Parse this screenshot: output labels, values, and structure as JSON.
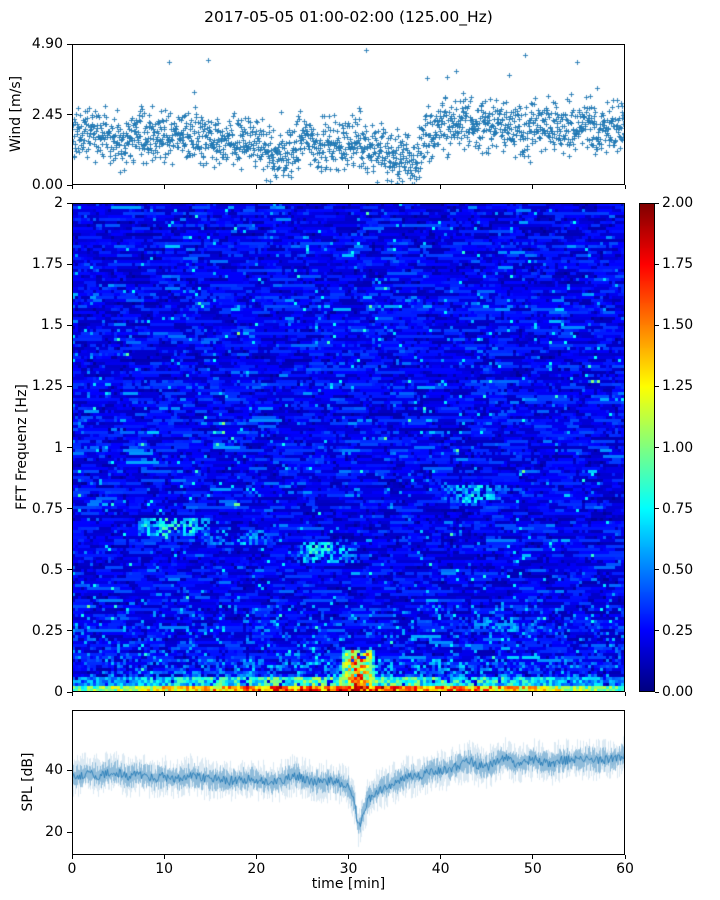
{
  "figure": {
    "title": "2017-05-05 01:00-02:00 (125.00_Hz)",
    "background": "#ffffff",
    "series_color": "#1f77b4"
  },
  "x_axis": {
    "label": "time [min]",
    "range": [
      0,
      60
    ],
    "tick_values": [
      0,
      10,
      20,
      30,
      40,
      50,
      60
    ],
    "tick_labels": [
      "0",
      "10",
      "20",
      "30",
      "40",
      "50",
      "60"
    ]
  },
  "chart_data": [
    {
      "type": "scatter",
      "name": "wind-speed",
      "ylabel": "Wind [m/s]",
      "marker": "+",
      "color": "#1f77b4",
      "xlim": [
        0,
        60
      ],
      "ylim": [
        0,
        4.9
      ],
      "ytick_values": [
        0,
        2.45,
        4.9
      ],
      "ytick_labels": [
        "0.00",
        "2.45",
        "4.90"
      ],
      "n_points": 1700,
      "spread": 0.55,
      "spike_rate": 0.022,
      "spike_max": 4.8,
      "trend": [
        [
          0,
          1.7
        ],
        [
          2,
          1.9
        ],
        [
          4,
          1.6
        ],
        [
          6,
          1.5
        ],
        [
          8,
          1.8
        ],
        [
          10,
          1.7
        ],
        [
          12,
          1.8
        ],
        [
          14,
          1.6
        ],
        [
          16,
          1.5
        ],
        [
          18,
          1.6
        ],
        [
          20,
          1.4
        ],
        [
          22,
          1.0
        ],
        [
          23,
          0.9
        ],
        [
          24,
          1.2
        ],
        [
          25,
          1.6
        ],
        [
          27,
          1.5
        ],
        [
          29,
          1.3
        ],
        [
          31,
          1.5
        ],
        [
          33,
          1.2
        ],
        [
          35,
          1.0
        ],
        [
          36,
          0.7
        ],
        [
          37,
          0.6
        ],
        [
          38,
          1.3
        ],
        [
          39,
          1.9
        ],
        [
          41,
          2.1
        ],
        [
          43,
          2.2
        ],
        [
          45,
          2.0
        ],
        [
          47,
          2.2
        ],
        [
          49,
          1.9
        ],
        [
          51,
          2.1
        ],
        [
          53,
          2.0
        ],
        [
          55,
          2.2
        ],
        [
          57,
          1.9
        ],
        [
          59,
          2.1
        ],
        [
          60,
          2.0
        ]
      ]
    },
    {
      "type": "heatmap",
      "name": "fft-spectrogram",
      "ylabel": "FFT Frequenz [Hz]",
      "colormap": "jet",
      "clim": [
        0,
        2
      ],
      "xlim": [
        0,
        60
      ],
      "ylim": [
        0,
        2
      ],
      "ytick_values": [
        0,
        0.25,
        0.5,
        0.75,
        1,
        1.25,
        1.5,
        1.75,
        2
      ],
      "ytick_labels": [
        "0",
        "0.25",
        "0.5",
        "0.75",
        "1",
        "1.25",
        "1.5",
        "1.75",
        "2"
      ],
      "background_level": 0.22,
      "colorbar": {
        "range": [
          0,
          2
        ],
        "tick_values": [
          0,
          0.25,
          0.5,
          0.75,
          1,
          1.25,
          1.5,
          1.75,
          2
        ],
        "tick_labels": [
          "0.00",
          "0.25",
          "0.50",
          "0.75",
          "1.00",
          "1.25",
          "1.50",
          "1.75",
          "2.00"
        ]
      },
      "features": [
        {
          "name": "surface-band",
          "t": [
            0,
            60
          ],
          "f": [
            0,
            0.022
          ],
          "v": [
            1.2,
            2.0
          ],
          "p": 1.0
        },
        {
          "name": "sub-surface-band",
          "t": [
            0,
            60
          ],
          "f": [
            0.022,
            0.06
          ],
          "v": [
            0.55,
            1.15
          ],
          "p": 0.9
        },
        {
          "name": "low-band-speckle",
          "t": [
            0,
            60
          ],
          "f": [
            0.06,
            0.13
          ],
          "v": [
            0.35,
            0.75
          ],
          "p": 0.35
        },
        {
          "name": "event-31min",
          "t": [
            29.3,
            32.6
          ],
          "f": [
            0,
            0.17
          ],
          "v": [
            0.9,
            2.0
          ],
          "p": 0.85
        },
        {
          "name": "event-31min-halo",
          "t": [
            28.5,
            33.5
          ],
          "f": [
            0,
            0.1
          ],
          "v": [
            0.6,
            1.2
          ],
          "p": 0.5
        },
        {
          "name": "streak-0.67Hz",
          "t": [
            7,
            15
          ],
          "f": [
            0.635,
            0.715
          ],
          "v": [
            0.6,
            1.0
          ],
          "p": 0.6
        },
        {
          "name": "streak-0.63Hz",
          "t": [
            14,
            22
          ],
          "f": [
            0.6,
            0.665
          ],
          "v": [
            0.45,
            0.75
          ],
          "p": 0.5
        },
        {
          "name": "streak-0.57Hz",
          "t": [
            24,
            31
          ],
          "f": [
            0.525,
            0.615
          ],
          "v": [
            0.55,
            0.95
          ],
          "p": 0.55
        },
        {
          "name": "streak-0.80Hz",
          "t": [
            40,
            47
          ],
          "f": [
            0.77,
            0.85
          ],
          "v": [
            0.5,
            0.85
          ],
          "p": 0.5
        },
        {
          "name": "streak-0.27Hz",
          "t": [
            42,
            52
          ],
          "f": [
            0.24,
            0.31
          ],
          "v": [
            0.4,
            0.7
          ],
          "p": 0.4
        }
      ]
    },
    {
      "type": "line",
      "name": "sound-pressure-level",
      "ylabel": "SPL [dB]",
      "color": "#1f77b4",
      "xlim": [
        0,
        60
      ],
      "ylim": [
        12.6,
        59.4
      ],
      "ytick_values": [
        20,
        40
      ],
      "ytick_labels": [
        "20",
        "40"
      ],
      "noise": 3.2,
      "trend": [
        [
          0,
          38
        ],
        [
          1,
          38.5
        ],
        [
          2,
          39
        ],
        [
          3,
          38
        ],
        [
          4,
          39.5
        ],
        [
          5,
          39
        ],
        [
          6,
          38
        ],
        [
          7,
          38.5
        ],
        [
          8,
          38
        ],
        [
          9,
          37.5
        ],
        [
          10,
          38
        ],
        [
          11,
          37
        ],
        [
          12,
          37.5
        ],
        [
          13,
          38.5
        ],
        [
          14,
          37.5
        ],
        [
          15,
          37
        ],
        [
          16,
          37.5
        ],
        [
          17,
          36.5
        ],
        [
          18,
          37
        ],
        [
          19,
          37
        ],
        [
          20,
          37
        ],
        [
          21,
          36.5
        ],
        [
          22,
          36
        ],
        [
          23,
          37
        ],
        [
          24,
          38.5
        ],
        [
          25,
          37.5
        ],
        [
          26,
          36.5
        ],
        [
          27,
          36
        ],
        [
          28,
          36.5
        ],
        [
          29,
          36
        ],
        [
          30,
          34.5
        ],
        [
          30.6,
          29
        ],
        [
          31,
          21.5
        ],
        [
          31.4,
          24
        ],
        [
          32,
          30
        ],
        [
          33,
          33.5
        ],
        [
          34,
          34.5
        ],
        [
          35,
          36
        ],
        [
          36,
          37.5
        ],
        [
          37,
          38
        ],
        [
          38,
          38.5
        ],
        [
          39,
          39.5
        ],
        [
          40,
          40
        ],
        [
          41,
          40.5
        ],
        [
          42,
          41.5
        ],
        [
          43,
          43
        ],
        [
          44,
          41.5
        ],
        [
          45,
          41
        ],
        [
          46,
          42.5
        ],
        [
          47,
          44
        ],
        [
          48,
          42
        ],
        [
          49,
          42.5
        ],
        [
          50,
          43.5
        ],
        [
          51,
          42.5
        ],
        [
          52,
          42
        ],
        [
          53,
          43
        ],
        [
          54,
          43.5
        ],
        [
          55,
          43
        ],
        [
          56,
          44
        ],
        [
          57,
          43
        ],
        [
          58,
          43.5
        ],
        [
          59,
          44
        ],
        [
          60,
          45
        ]
      ]
    }
  ]
}
